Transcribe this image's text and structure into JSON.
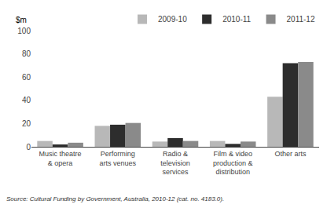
{
  "chart_data": {
    "type": "bar",
    "ylabel": "$m",
    "annotations": [
      "Source: Cultural Funding by Government, Australia, 2010-12 (cat. no. 4183.0)."
    ],
    "categories": [
      "Music theatre\n& opera",
      "Performing\narts venues",
      "Radio &\ntelevision\nservices",
      "Film & video\nproduction &\ndistribution",
      "Other arts"
    ],
    "series": [
      {
        "name": "2009-10",
        "color": "#b8b8b8",
        "values": [
          5,
          18,
          4.5,
          5,
          43
        ]
      },
      {
        "name": "2010-11",
        "color": "#2d2d2d",
        "values": [
          2,
          19,
          7.5,
          2.5,
          72
        ]
      },
      {
        "name": "2011-12",
        "color": "#8a8a8a",
        "values": [
          3.5,
          20.5,
          5,
          4.5,
          73
        ]
      }
    ],
    "ylim": [
      0,
      100
    ],
    "yticks": [
      0,
      20,
      40,
      60,
      80,
      100
    ],
    "grid": false,
    "legend": "upper right"
  }
}
